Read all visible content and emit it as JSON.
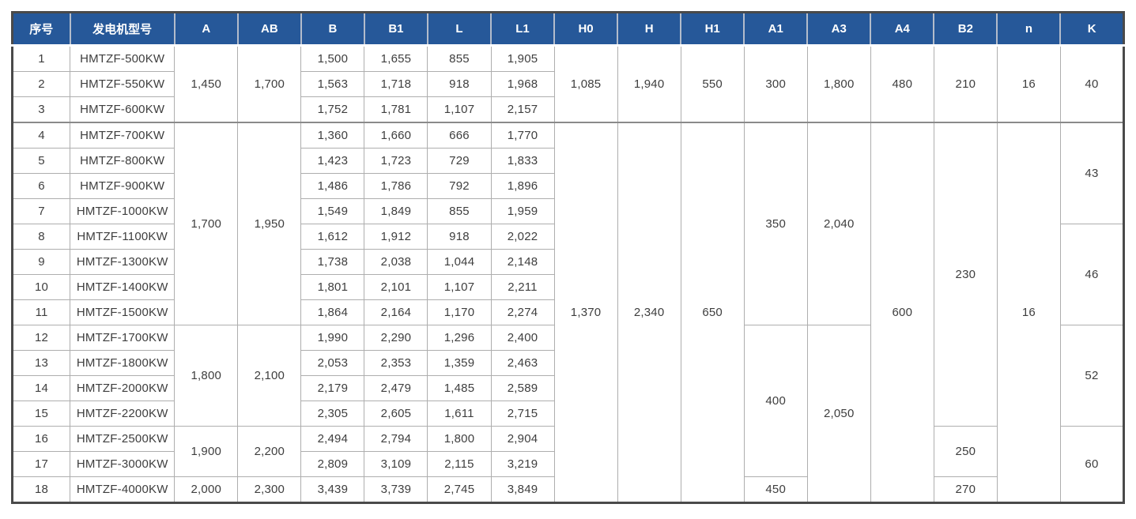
{
  "page": {
    "background_color": "#ffffff"
  },
  "table": {
    "description_name": "generator-dimension-spec-table",
    "header_bg_color": "#265899",
    "header_text_color": "#ffffff",
    "grid_line_color": "#aeaeae",
    "section_line_color": "#8a8a8a",
    "frame_color": "#4a4a4a",
    "body_text_color": "#3e3e3e",
    "columns": [
      {
        "key": "index",
        "label": "序号"
      },
      {
        "key": "model",
        "label": "发电机型号"
      },
      {
        "key": "a",
        "label": "A"
      },
      {
        "key": "ab",
        "label": "AB"
      },
      {
        "key": "b",
        "label": "B"
      },
      {
        "key": "b1",
        "label": "B1"
      },
      {
        "key": "l",
        "label": "L"
      },
      {
        "key": "l1",
        "label": "L1"
      },
      {
        "key": "h0",
        "label": "H0"
      },
      {
        "key": "h",
        "label": "H"
      },
      {
        "key": "h1",
        "label": "H1"
      },
      {
        "key": "a1",
        "label": "A1"
      },
      {
        "key": "a3",
        "label": "A3"
      },
      {
        "key": "a4",
        "label": "A4"
      },
      {
        "key": "b2",
        "label": "B2"
      },
      {
        "key": "n",
        "label": "n"
      },
      {
        "key": "k",
        "label": "K"
      }
    ],
    "rows": [
      {
        "section_start": false,
        "cells": [
          {
            "col": "index",
            "v": "1"
          },
          {
            "col": "model",
            "v": "HMTZF-500KW"
          },
          {
            "col": "a",
            "v": "1,450",
            "rs": 3
          },
          {
            "col": "ab",
            "v": "1,700",
            "rs": 3
          },
          {
            "col": "b",
            "v": "1,500"
          },
          {
            "col": "b1",
            "v": "1,655"
          },
          {
            "col": "l",
            "v": "855"
          },
          {
            "col": "l1",
            "v": "1,905"
          },
          {
            "col": "h0",
            "v": "1,085",
            "rs": 3
          },
          {
            "col": "h",
            "v": "1,940",
            "rs": 3
          },
          {
            "col": "h1",
            "v": "550",
            "rs": 3
          },
          {
            "col": "a1",
            "v": "300",
            "rs": 3
          },
          {
            "col": "a3",
            "v": "1,800",
            "rs": 3
          },
          {
            "col": "a4",
            "v": "480",
            "rs": 3
          },
          {
            "col": "b2",
            "v": "210",
            "rs": 3
          },
          {
            "col": "n",
            "v": "16",
            "rs": 3
          },
          {
            "col": "k",
            "v": "40",
            "rs": 3
          }
        ]
      },
      {
        "section_start": false,
        "cells": [
          {
            "col": "index",
            "v": "2"
          },
          {
            "col": "model",
            "v": "HMTZF-550KW"
          },
          {
            "col": "b",
            "v": "1,563"
          },
          {
            "col": "b1",
            "v": "1,718"
          },
          {
            "col": "l",
            "v": "918"
          },
          {
            "col": "l1",
            "v": "1,968"
          }
        ]
      },
      {
        "section_start": false,
        "cells": [
          {
            "col": "index",
            "v": "3"
          },
          {
            "col": "model",
            "v": "HMTZF-600KW"
          },
          {
            "col": "b",
            "v": "1,752"
          },
          {
            "col": "b1",
            "v": "1,781"
          },
          {
            "col": "l",
            "v": "1,107"
          },
          {
            "col": "l1",
            "v": "2,157"
          }
        ]
      },
      {
        "section_start": true,
        "cells": [
          {
            "col": "index",
            "v": "4"
          },
          {
            "col": "model",
            "v": "HMTZF-700KW"
          },
          {
            "col": "a",
            "v": "1,700",
            "rs": 8
          },
          {
            "col": "ab",
            "v": "1,950",
            "rs": 8
          },
          {
            "col": "b",
            "v": "1,360"
          },
          {
            "col": "b1",
            "v": "1,660"
          },
          {
            "col": "l",
            "v": "666"
          },
          {
            "col": "l1",
            "v": "1,770"
          },
          {
            "col": "h0",
            "v": "1,370",
            "rs": 15
          },
          {
            "col": "h",
            "v": "2,340",
            "rs": 15
          },
          {
            "col": "h1",
            "v": "650",
            "rs": 15
          },
          {
            "col": "a1",
            "v": "350",
            "rs": 8
          },
          {
            "col": "a3",
            "v": "2,040",
            "rs": 8
          },
          {
            "col": "a4",
            "v": "600",
            "rs": 15
          },
          {
            "col": "b2",
            "v": "230",
            "rs": 12
          },
          {
            "col": "n",
            "v": "16",
            "rs": 15
          },
          {
            "col": "k",
            "v": "43",
            "rs": 4
          }
        ]
      },
      {
        "section_start": false,
        "cells": [
          {
            "col": "index",
            "v": "5"
          },
          {
            "col": "model",
            "v": "HMTZF-800KW"
          },
          {
            "col": "b",
            "v": "1,423"
          },
          {
            "col": "b1",
            "v": "1,723"
          },
          {
            "col": "l",
            "v": "729"
          },
          {
            "col": "l1",
            "v": "1,833"
          }
        ]
      },
      {
        "section_start": false,
        "cells": [
          {
            "col": "index",
            "v": "6"
          },
          {
            "col": "model",
            "v": "HMTZF-900KW"
          },
          {
            "col": "b",
            "v": "1,486"
          },
          {
            "col": "b1",
            "v": "1,786"
          },
          {
            "col": "l",
            "v": "792"
          },
          {
            "col": "l1",
            "v": "1,896"
          }
        ]
      },
      {
        "section_start": false,
        "cells": [
          {
            "col": "index",
            "v": "7"
          },
          {
            "col": "model",
            "v": "HMTZF-1000KW"
          },
          {
            "col": "b",
            "v": "1,549"
          },
          {
            "col": "b1",
            "v": "1,849"
          },
          {
            "col": "l",
            "v": "855"
          },
          {
            "col": "l1",
            "v": "1,959"
          }
        ]
      },
      {
        "section_start": false,
        "cells": [
          {
            "col": "index",
            "v": "8"
          },
          {
            "col": "model",
            "v": "HMTZF-1100KW"
          },
          {
            "col": "b",
            "v": "1,612"
          },
          {
            "col": "b1",
            "v": "1,912"
          },
          {
            "col": "l",
            "v": "918"
          },
          {
            "col": "l1",
            "v": "2,022"
          },
          {
            "col": "k",
            "v": "46",
            "rs": 4
          }
        ]
      },
      {
        "section_start": false,
        "cells": [
          {
            "col": "index",
            "v": "9"
          },
          {
            "col": "model",
            "v": "HMTZF-1300KW"
          },
          {
            "col": "b",
            "v": "1,738"
          },
          {
            "col": "b1",
            "v": "2,038"
          },
          {
            "col": "l",
            "v": "1,044"
          },
          {
            "col": "l1",
            "v": "2,148"
          }
        ]
      },
      {
        "section_start": false,
        "cells": [
          {
            "col": "index",
            "v": "10"
          },
          {
            "col": "model",
            "v": "HMTZF-1400KW"
          },
          {
            "col": "b",
            "v": "1,801"
          },
          {
            "col": "b1",
            "v": "2,101"
          },
          {
            "col": "l",
            "v": "1,107"
          },
          {
            "col": "l1",
            "v": "2,211"
          }
        ]
      },
      {
        "section_start": false,
        "cells": [
          {
            "col": "index",
            "v": "11"
          },
          {
            "col": "model",
            "v": "HMTZF-1500KW"
          },
          {
            "col": "b",
            "v": "1,864"
          },
          {
            "col": "b1",
            "v": "2,164"
          },
          {
            "col": "l",
            "v": "1,170"
          },
          {
            "col": "l1",
            "v": "2,274"
          }
        ]
      },
      {
        "section_start": false,
        "cells": [
          {
            "col": "index",
            "v": "12"
          },
          {
            "col": "model",
            "v": "HMTZF-1700KW"
          },
          {
            "col": "a",
            "v": "1,800",
            "rs": 4
          },
          {
            "col": "ab",
            "v": "2,100",
            "rs": 4
          },
          {
            "col": "b",
            "v": "1,990"
          },
          {
            "col": "b1",
            "v": "2,290"
          },
          {
            "col": "l",
            "v": "1,296"
          },
          {
            "col": "l1",
            "v": "2,400"
          },
          {
            "col": "a1",
            "v": "400",
            "rs": 6
          },
          {
            "col": "a3",
            "v": "2,050",
            "rs": 7
          },
          {
            "col": "k",
            "v": "52",
            "rs": 4
          }
        ]
      },
      {
        "section_start": false,
        "cells": [
          {
            "col": "index",
            "v": "13"
          },
          {
            "col": "model",
            "v": "HMTZF-1800KW"
          },
          {
            "col": "b",
            "v": "2,053"
          },
          {
            "col": "b1",
            "v": "2,353"
          },
          {
            "col": "l",
            "v": "1,359"
          },
          {
            "col": "l1",
            "v": "2,463"
          }
        ]
      },
      {
        "section_start": false,
        "cells": [
          {
            "col": "index",
            "v": "14"
          },
          {
            "col": "model",
            "v": "HMTZF-2000KW"
          },
          {
            "col": "b",
            "v": "2,179"
          },
          {
            "col": "b1",
            "v": "2,479"
          },
          {
            "col": "l",
            "v": "1,485"
          },
          {
            "col": "l1",
            "v": "2,589"
          }
        ]
      },
      {
        "section_start": false,
        "cells": [
          {
            "col": "index",
            "v": "15"
          },
          {
            "col": "model",
            "v": "HMTZF-2200KW"
          },
          {
            "col": "b",
            "v": "2,305"
          },
          {
            "col": "b1",
            "v": "2,605"
          },
          {
            "col": "l",
            "v": "1,611"
          },
          {
            "col": "l1",
            "v": "2,715"
          }
        ]
      },
      {
        "section_start": false,
        "cells": [
          {
            "col": "index",
            "v": "16"
          },
          {
            "col": "model",
            "v": "HMTZF-2500KW"
          },
          {
            "col": "a",
            "v": "1,900",
            "rs": 2
          },
          {
            "col": "ab",
            "v": "2,200",
            "rs": 2
          },
          {
            "col": "b",
            "v": "2,494"
          },
          {
            "col": "b1",
            "v": "2,794"
          },
          {
            "col": "l",
            "v": "1,800"
          },
          {
            "col": "l1",
            "v": "2,904"
          },
          {
            "col": "b2",
            "v": "250",
            "rs": 2
          },
          {
            "col": "k",
            "v": "60",
            "rs": 3
          }
        ]
      },
      {
        "section_start": false,
        "cells": [
          {
            "col": "index",
            "v": "17"
          },
          {
            "col": "model",
            "v": "HMTZF-3000KW"
          },
          {
            "col": "b",
            "v": "2,809"
          },
          {
            "col": "b1",
            "v": "3,109"
          },
          {
            "col": "l",
            "v": "2,115"
          },
          {
            "col": "l1",
            "v": "3,219"
          }
        ]
      },
      {
        "section_start": false,
        "cells": [
          {
            "col": "index",
            "v": "18"
          },
          {
            "col": "model",
            "v": "HMTZF-4000KW"
          },
          {
            "col": "a",
            "v": "2,000"
          },
          {
            "col": "ab",
            "v": "2,300"
          },
          {
            "col": "b",
            "v": "3,439"
          },
          {
            "col": "b1",
            "v": "3,739"
          },
          {
            "col": "l",
            "v": "2,745"
          },
          {
            "col": "l1",
            "v": "3,849"
          },
          {
            "col": "a1",
            "v": "450"
          },
          {
            "col": "b2",
            "v": "270"
          }
        ]
      }
    ]
  }
}
